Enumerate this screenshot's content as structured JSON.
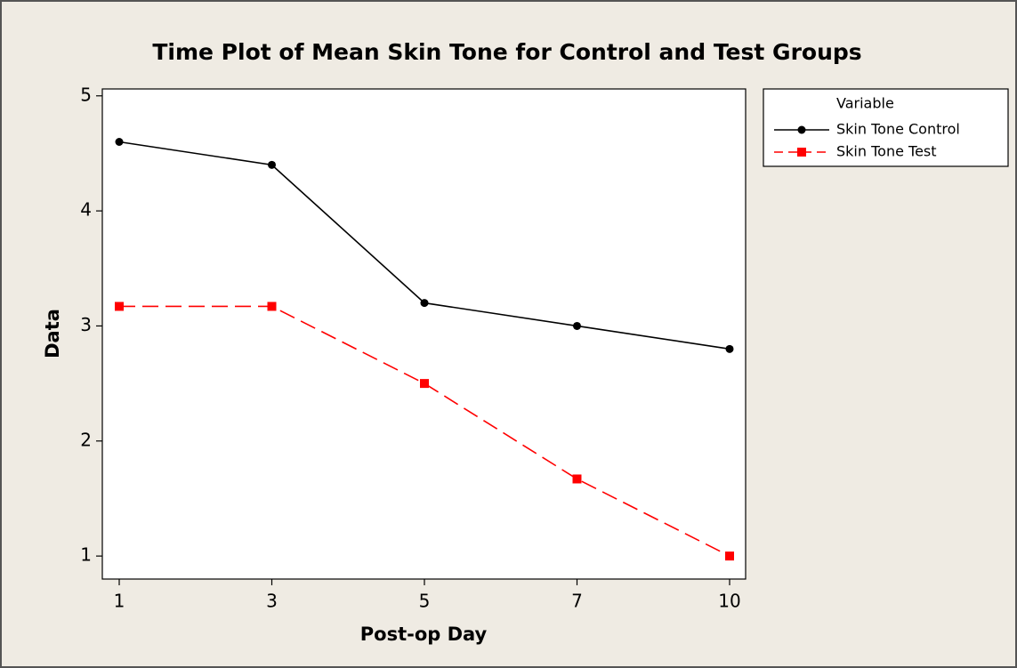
{
  "chart_data": {
    "type": "line",
    "title": "Time Plot of Mean Skin Tone for Control and Test Groups",
    "x_label": "Post-op Day",
    "y_label": "Data",
    "categories": [
      "1",
      "3",
      "5",
      "7",
      "10"
    ],
    "series": [
      {
        "name": "Skin Tone Control",
        "color": "#000000",
        "linestyle": "solid",
        "marker": "circle",
        "values": [
          4.6,
          4.4,
          3.2,
          3.0,
          2.8
        ]
      },
      {
        "name": "Skin Tone Test",
        "color": "#ff0000",
        "linestyle": "dashed",
        "marker": "square",
        "values": [
          3.17,
          3.17,
          2.5,
          1.67,
          1.0
        ]
      }
    ],
    "ylim": [
      0.8,
      5.06
    ],
    "yticks": [
      1,
      2,
      3,
      4,
      5
    ],
    "legend_title": "Variable",
    "legend": "outside-right-top",
    "grid": false
  }
}
